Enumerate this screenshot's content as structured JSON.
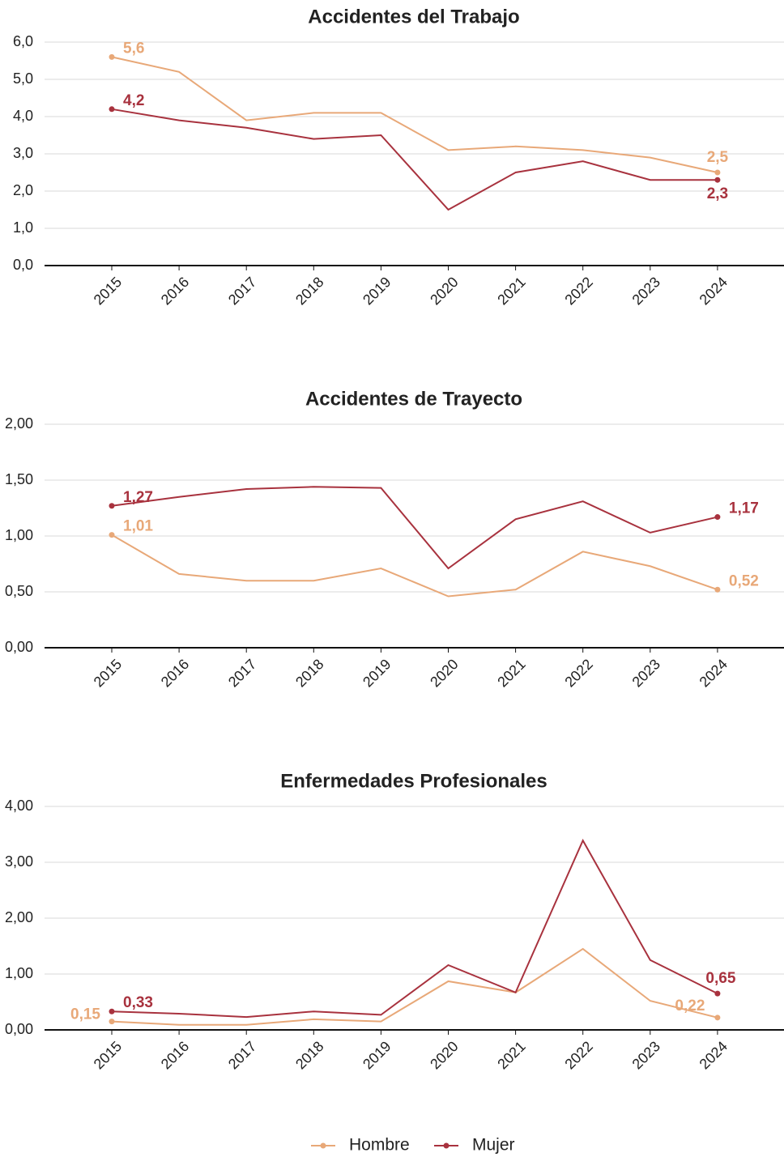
{
  "chart_data": [
    {
      "type": "line",
      "title": "Accidentes del Trabajo",
      "categories": [
        "2015",
        "2016",
        "2017",
        "2018",
        "2019",
        "2020",
        "2021",
        "2022",
        "2023",
        "2024"
      ],
      "series": [
        {
          "name": "Hombre",
          "color": "#e8a878",
          "values": [
            5.6,
            5.2,
            3.9,
            4.1,
            4.1,
            3.1,
            3.2,
            3.1,
            2.9,
            2.5
          ],
          "value_labels": [
            "5,6",
            null,
            null,
            null,
            null,
            null,
            null,
            null,
            null,
            "2,5"
          ]
        },
        {
          "name": "Mujer",
          "color": "#a8323e",
          "values": [
            4.2,
            3.9,
            3.7,
            3.4,
            3.5,
            1.5,
            2.5,
            2.8,
            2.3,
            2.3
          ],
          "value_labels": [
            "4,2",
            null,
            null,
            null,
            null,
            null,
            null,
            null,
            null,
            "2,3"
          ]
        }
      ],
      "ylim": [
        0,
        6
      ],
      "yticks": [
        {
          "value": 0,
          "label": "0,0"
        },
        {
          "value": 1,
          "label": "1,0"
        },
        {
          "value": 2,
          "label": "2,0"
        },
        {
          "value": 3,
          "label": "3,0"
        },
        {
          "value": 4,
          "label": "4,0"
        },
        {
          "value": 5,
          "label": "5,0"
        },
        {
          "value": 6,
          "label": "6,0"
        }
      ],
      "grid": true
    },
    {
      "type": "line",
      "title": "Accidentes de Trayecto",
      "categories": [
        "2015",
        "2016",
        "2017",
        "2018",
        "2019",
        "2020",
        "2021",
        "2022",
        "2023",
        "2024"
      ],
      "series": [
        {
          "name": "Hombre",
          "color": "#e8a878",
          "values": [
            1.01,
            0.66,
            0.6,
            0.6,
            0.71,
            0.46,
            0.52,
            0.86,
            0.73,
            0.52
          ],
          "value_labels": [
            "1,01",
            null,
            null,
            null,
            null,
            null,
            null,
            null,
            null,
            "0,52"
          ]
        },
        {
          "name": "Mujer",
          "color": "#a8323e",
          "values": [
            1.27,
            1.35,
            1.42,
            1.44,
            1.43,
            0.71,
            1.15,
            1.31,
            1.03,
            1.17
          ],
          "value_labels": [
            "1,27",
            null,
            null,
            null,
            null,
            null,
            null,
            null,
            null,
            "1,17"
          ]
        }
      ],
      "ylim": [
        0,
        2
      ],
      "yticks": [
        {
          "value": 0,
          "label": "0,00"
        },
        {
          "value": 0.5,
          "label": "0,50"
        },
        {
          "value": 1,
          "label": "1,00"
        },
        {
          "value": 1.5,
          "label": "1,50"
        },
        {
          "value": 2,
          "label": "2,00"
        }
      ],
      "grid": true
    },
    {
      "type": "line",
      "title": "Enfermedades Profesionales",
      "categories": [
        "2015",
        "2016",
        "2017",
        "2018",
        "2019",
        "2020",
        "2021",
        "2022",
        "2023",
        "2024"
      ],
      "series": [
        {
          "name": "Hombre",
          "color": "#e8a878",
          "values": [
            0.15,
            0.09,
            0.09,
            0.19,
            0.15,
            0.87,
            0.67,
            1.45,
            0.52,
            0.22
          ],
          "value_labels": [
            "0,15",
            null,
            null,
            null,
            null,
            null,
            null,
            null,
            null,
            "0,22"
          ]
        },
        {
          "name": "Mujer",
          "color": "#a8323e",
          "values": [
            0.33,
            0.29,
            0.23,
            0.33,
            0.27,
            1.16,
            0.67,
            3.39,
            1.25,
            0.65
          ],
          "value_labels": [
            "0,33",
            null,
            null,
            null,
            null,
            null,
            null,
            null,
            null,
            "0,65"
          ]
        }
      ],
      "ylim": [
        0,
        4
      ],
      "yticks": [
        {
          "value": 0,
          "label": "0,00"
        },
        {
          "value": 1,
          "label": "1,00"
        },
        {
          "value": 2,
          "label": "2,00"
        },
        {
          "value": 3,
          "label": "3,00"
        },
        {
          "value": 4,
          "label": "4,00"
        }
      ],
      "grid": true
    }
  ]
}
